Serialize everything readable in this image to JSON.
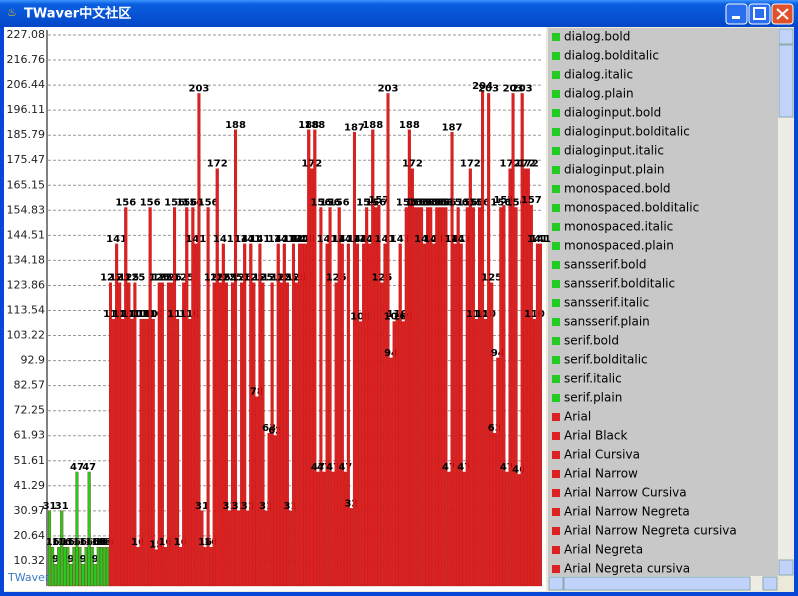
{
  "window": {
    "title": "TWaver中文社区"
  },
  "chart_data": {
    "type": "bar",
    "ylim": [
      0,
      227.08
    ],
    "yticks": [
      10.32,
      20.64,
      30.97,
      41.29,
      51.61,
      61.93,
      72.25,
      82.57,
      92.9,
      103.22,
      113.54,
      123.86,
      134.18,
      144.51,
      154.83,
      165.15,
      175.47,
      185.79,
      196.11,
      206.44,
      216.76,
      227.08
    ],
    "grid": true,
    "watermark": "TWaver",
    "series": [
      {
        "color": "#22cc22",
        "values": [
          31,
          16,
          9,
          16,
          31,
          16,
          16,
          9,
          16,
          47,
          16,
          9,
          16,
          47,
          16,
          9,
          16,
          16,
          16,
          16
        ]
      },
      {
        "color": "#dd2020",
        "values": [
          125,
          110,
          141,
          125,
          110,
          156,
          125,
          110,
          125,
          16,
          110,
          110,
          110,
          156,
          110,
          15,
          125,
          125,
          16,
          125,
          125,
          156,
          110,
          16,
          125,
          156,
          110,
          156,
          141,
          203,
          31,
          16,
          156,
          16,
          125,
          172,
          125,
          141,
          125,
          31,
          125,
          188,
          31,
          125,
          141,
          31,
          141,
          125,
          78,
          141,
          125,
          31,
          63,
          125,
          62,
          141,
          125,
          141,
          125,
          31,
          141,
          125,
          141,
          141,
          141,
          188,
          172,
          188,
          47,
          156,
          47,
          141,
          156,
          47,
          125,
          156,
          141,
          47,
          141,
          32,
          187,
          141,
          109,
          141,
          156,
          141,
          188,
          156,
          157,
          125,
          141,
          203,
          94,
          109,
          110,
          141,
          109,
          156,
          188,
          172,
          156,
          156,
          156,
          141,
          156,
          156,
          141,
          156,
          156,
          156,
          156,
          47,
          187,
          141,
          156,
          141,
          47,
          156,
          172,
          156,
          110,
          156,
          204,
          110,
          203,
          125,
          63,
          94,
          156,
          157,
          47,
          172,
          203,
          156,
          46,
          203,
          172,
          172,
          157,
          110,
          141,
          141
        ]
      }
    ]
  },
  "list": {
    "items": [
      {
        "label": "dialog.bold",
        "color": "#22cc22"
      },
      {
        "label": "dialog.bolditalic",
        "color": "#22cc22"
      },
      {
        "label": "dialog.italic",
        "color": "#22cc22"
      },
      {
        "label": "dialog.plain",
        "color": "#22cc22"
      },
      {
        "label": "dialoginput.bold",
        "color": "#22cc22"
      },
      {
        "label": "dialoginput.bolditalic",
        "color": "#22cc22"
      },
      {
        "label": "dialoginput.italic",
        "color": "#22cc22"
      },
      {
        "label": "dialoginput.plain",
        "color": "#22cc22"
      },
      {
        "label": "monospaced.bold",
        "color": "#22cc22"
      },
      {
        "label": "monospaced.bolditalic",
        "color": "#22cc22"
      },
      {
        "label": "monospaced.italic",
        "color": "#22cc22"
      },
      {
        "label": "monospaced.plain",
        "color": "#22cc22"
      },
      {
        "label": "sansserif.bold",
        "color": "#22cc22"
      },
      {
        "label": "sansserif.bolditalic",
        "color": "#22cc22"
      },
      {
        "label": "sansserif.italic",
        "color": "#22cc22"
      },
      {
        "label": "sansserif.plain",
        "color": "#22cc22"
      },
      {
        "label": "serif.bold",
        "color": "#22cc22"
      },
      {
        "label": "serif.bolditalic",
        "color": "#22cc22"
      },
      {
        "label": "serif.italic",
        "color": "#22cc22"
      },
      {
        "label": "serif.plain",
        "color": "#22cc22"
      },
      {
        "label": "Arial",
        "color": "#dd2020"
      },
      {
        "label": "Arial Black",
        "color": "#dd2020"
      },
      {
        "label": "Arial Cursiva",
        "color": "#dd2020"
      },
      {
        "label": "Arial Narrow",
        "color": "#dd2020"
      },
      {
        "label": "Arial Narrow Cursiva",
        "color": "#dd2020"
      },
      {
        "label": "Arial Narrow Negreta",
        "color": "#dd2020"
      },
      {
        "label": "Arial Narrow Negreta cursiva",
        "color": "#dd2020"
      },
      {
        "label": "Arial Negreta",
        "color": "#dd2020"
      },
      {
        "label": "Arial Negreta cursiva",
        "color": "#dd2020"
      }
    ]
  }
}
